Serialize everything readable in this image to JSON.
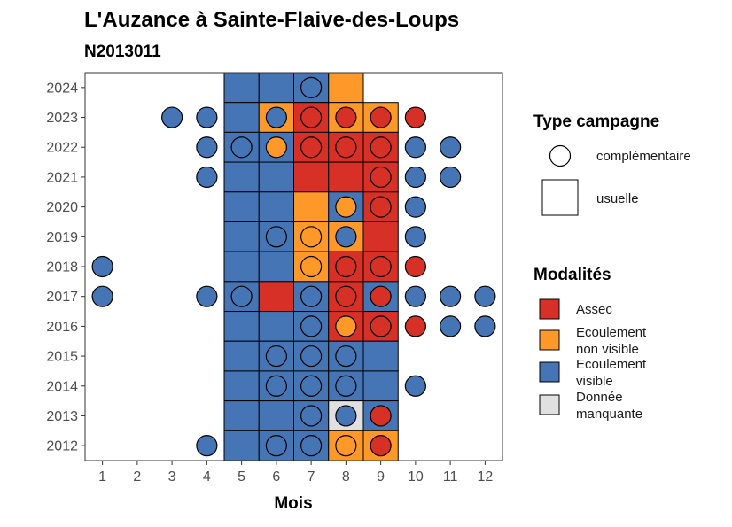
{
  "chart_data": {
    "type": "heatmap",
    "title": "L'Auzance à Sainte-Flaive-des-Loups",
    "subtitle": "N2013011",
    "xlabel": "Mois",
    "ylabel": "",
    "x_ticks": [
      "1",
      "2",
      "3",
      "4",
      "5",
      "6",
      "7",
      "8",
      "9",
      "10",
      "11",
      "12"
    ],
    "y_ticks": [
      "2012",
      "2013",
      "2014",
      "2015",
      "2016",
      "2017",
      "2018",
      "2019",
      "2020",
      "2021",
      "2022",
      "2023",
      "2024"
    ],
    "xlim": [
      0.5,
      12.5
    ],
    "ylim": [
      2011.5,
      2024.5
    ],
    "colors": {
      "Assec": "#d73027",
      "Ecoulement non visible": "#fe9929",
      "Ecoulement visible": "#4575b4",
      "Donnée manquante": "#e0e0e0"
    },
    "legend_type": {
      "title": "Type campagne",
      "items": [
        {
          "label": "complémentaire",
          "shape": "circle"
        },
        {
          "label": "usuelle",
          "shape": "square"
        }
      ]
    },
    "legend_mod": {
      "title": "Modalités",
      "items": [
        {
          "lines": [
            "Assec"
          ],
          "key": "Assec"
        },
        {
          "lines": [
            "Ecoulement",
            "non visible"
          ],
          "key": "Ecoulement non visible"
        },
        {
          "lines": [
            "Ecoulement",
            "visible"
          ],
          "key": "Ecoulement visible"
        },
        {
          "lines": [
            "Donnée",
            "manquante"
          ],
          "key": "Donnée manquante"
        }
      ]
    },
    "usuelle": [
      {
        "year": 2024,
        "months": [
          [
            "Ecoulement visible",
            "Ecoulement visible",
            "Ecoulement visible",
            "Ecoulement non visible"
          ]
        ],
        "start": 5
      },
      {
        "year": 2023,
        "start": 5,
        "months": [
          [
            "Ecoulement visible",
            "Ecoulement non visible",
            "Assec",
            "Ecoulement non visible",
            "Ecoulement non visible"
          ]
        ]
      },
      {
        "year": 2022,
        "start": 5,
        "months": [
          [
            "Ecoulement visible",
            "Ecoulement visible",
            "Assec",
            "Assec",
            "Assec"
          ]
        ]
      },
      {
        "year": 2021,
        "start": 5,
        "months": [
          [
            "Ecoulement visible",
            "Ecoulement visible",
            "Assec",
            "Assec",
            "Assec"
          ]
        ]
      },
      {
        "year": 2020,
        "start": 5,
        "months": [
          [
            "Ecoulement visible",
            "Ecoulement visible",
            "Ecoulement non visible",
            "Ecoulement visible",
            "Assec"
          ]
        ]
      },
      {
        "year": 2019,
        "start": 5,
        "months": [
          [
            "Ecoulement visible",
            "Ecoulement visible",
            "Ecoulement non visible",
            "Ecoulement non visible",
            "Assec"
          ]
        ]
      },
      {
        "year": 2018,
        "start": 5,
        "months": [
          [
            "Ecoulement visible",
            "Ecoulement visible",
            "Ecoulement non visible",
            "Assec",
            "Assec"
          ]
        ]
      },
      {
        "year": 2017,
        "start": 5,
        "months": [
          [
            "Ecoulement visible",
            "Assec",
            "Ecoulement visible",
            "Assec",
            "Ecoulement visible"
          ]
        ]
      },
      {
        "year": 2016,
        "start": 5,
        "months": [
          [
            "Ecoulement visible",
            "Ecoulement visible",
            "Ecoulement visible",
            "Assec",
            "Assec"
          ]
        ]
      },
      {
        "year": 2015,
        "start": 5,
        "months": [
          [
            "Ecoulement visible",
            "Ecoulement visible",
            "Ecoulement visible",
            "Ecoulement visible",
            "Ecoulement visible"
          ]
        ]
      },
      {
        "year": 2014,
        "start": 5,
        "months": [
          [
            "Ecoulement visible",
            "Ecoulement visible",
            "Ecoulement visible",
            "Ecoulement visible",
            "Ecoulement visible"
          ]
        ]
      },
      {
        "year": 2013,
        "start": 5,
        "months": [
          [
            "Ecoulement visible",
            "Ecoulement visible",
            "Ecoulement visible",
            "Donnée manquante",
            "Ecoulement visible"
          ]
        ]
      },
      {
        "year": 2012,
        "start": 5,
        "months": [
          [
            "Ecoulement visible",
            "Ecoulement visible",
            "Ecoulement visible",
            "Ecoulement non visible",
            "Ecoulement non visible"
          ]
        ]
      }
    ],
    "complementaire": [
      {
        "year": 2024,
        "month": 7,
        "m": "Ecoulement visible"
      },
      {
        "year": 2023,
        "month": 3,
        "m": "Ecoulement visible"
      },
      {
        "year": 2023,
        "month": 4,
        "m": "Ecoulement visible"
      },
      {
        "year": 2023,
        "month": 6,
        "m": "Ecoulement visible"
      },
      {
        "year": 2023,
        "month": 7,
        "m": "Assec"
      },
      {
        "year": 2023,
        "month": 8,
        "m": "Assec"
      },
      {
        "year": 2023,
        "month": 9,
        "m": "Assec"
      },
      {
        "year": 2023,
        "month": 10,
        "m": "Assec"
      },
      {
        "year": 2022,
        "month": 4,
        "m": "Ecoulement visible"
      },
      {
        "year": 2022,
        "month": 5,
        "m": "Ecoulement visible"
      },
      {
        "year": 2022,
        "month": 6,
        "m": "Ecoulement non visible"
      },
      {
        "year": 2022,
        "month": 7,
        "m": "Assec"
      },
      {
        "year": 2022,
        "month": 8,
        "m": "Assec"
      },
      {
        "year": 2022,
        "month": 9,
        "m": "Assec"
      },
      {
        "year": 2022,
        "month": 10,
        "m": "Ecoulement visible"
      },
      {
        "year": 2022,
        "month": 11,
        "m": "Ecoulement visible"
      },
      {
        "year": 2021,
        "month": 4,
        "m": "Ecoulement visible"
      },
      {
        "year": 2021,
        "month": 9,
        "m": "Assec"
      },
      {
        "year": 2021,
        "month": 10,
        "m": "Ecoulement visible"
      },
      {
        "year": 2021,
        "month": 11,
        "m": "Ecoulement visible"
      },
      {
        "year": 2020,
        "month": 8,
        "m": "Ecoulement non visible"
      },
      {
        "year": 2020,
        "month": 9,
        "m": "Assec"
      },
      {
        "year": 2020,
        "month": 10,
        "m": "Ecoulement visible"
      },
      {
        "year": 2019,
        "month": 6,
        "m": "Ecoulement visible"
      },
      {
        "year": 2019,
        "month": 7,
        "m": "Ecoulement non visible"
      },
      {
        "year": 2019,
        "month": 8,
        "m": "Ecoulement visible"
      },
      {
        "year": 2019,
        "month": 10,
        "m": "Ecoulement visible"
      },
      {
        "year": 2018,
        "month": 1,
        "m": "Ecoulement visible"
      },
      {
        "year": 2018,
        "month": 7,
        "m": "Ecoulement non visible"
      },
      {
        "year": 2018,
        "month": 8,
        "m": "Assec"
      },
      {
        "year": 2018,
        "month": 9,
        "m": "Assec"
      },
      {
        "year": 2018,
        "month": 10,
        "m": "Assec"
      },
      {
        "year": 2017,
        "month": 1,
        "m": "Ecoulement visible"
      },
      {
        "year": 2017,
        "month": 4,
        "m": "Ecoulement visible"
      },
      {
        "year": 2017,
        "month": 5,
        "m": "Ecoulement visible"
      },
      {
        "year": 2017,
        "month": 7,
        "m": "Ecoulement visible"
      },
      {
        "year": 2017,
        "month": 8,
        "m": "Assec"
      },
      {
        "year": 2017,
        "month": 9,
        "m": "Assec"
      },
      {
        "year": 2017,
        "month": 10,
        "m": "Ecoulement visible"
      },
      {
        "year": 2017,
        "month": 11,
        "m": "Ecoulement visible"
      },
      {
        "year": 2017,
        "month": 12,
        "m": "Ecoulement visible"
      },
      {
        "year": 2016,
        "month": 7,
        "m": "Ecoulement visible"
      },
      {
        "year": 2016,
        "month": 8,
        "m": "Ecoulement non visible"
      },
      {
        "year": 2016,
        "month": 9,
        "m": "Assec"
      },
      {
        "year": 2016,
        "month": 10,
        "m": "Assec"
      },
      {
        "year": 2016,
        "month": 11,
        "m": "Ecoulement visible"
      },
      {
        "year": 2016,
        "month": 12,
        "m": "Ecoulement visible"
      },
      {
        "year": 2015,
        "month": 6,
        "m": "Ecoulement visible"
      },
      {
        "year": 2015,
        "month": 7,
        "m": "Ecoulement visible"
      },
      {
        "year": 2015,
        "month": 8,
        "m": "Ecoulement visible"
      },
      {
        "year": 2014,
        "month": 6,
        "m": "Ecoulement visible"
      },
      {
        "year": 2014,
        "month": 7,
        "m": "Ecoulement visible"
      },
      {
        "year": 2014,
        "month": 8,
        "m": "Ecoulement visible"
      },
      {
        "year": 2014,
        "month": 10,
        "m": "Ecoulement visible"
      },
      {
        "year": 2013,
        "month": 7,
        "m": "Ecoulement visible"
      },
      {
        "year": 2013,
        "month": 8,
        "m": "Ecoulement visible"
      },
      {
        "year": 2013,
        "month": 9,
        "m": "Assec"
      },
      {
        "year": 2012,
        "month": 4,
        "m": "Ecoulement visible"
      },
      {
        "year": 2012,
        "month": 6,
        "m": "Ecoulement visible"
      },
      {
        "year": 2012,
        "month": 7,
        "m": "Ecoulement visible"
      },
      {
        "year": 2012,
        "month": 8,
        "m": "Ecoulement non visible"
      },
      {
        "year": 2012,
        "month": 9,
        "m": "Assec"
      }
    ]
  }
}
